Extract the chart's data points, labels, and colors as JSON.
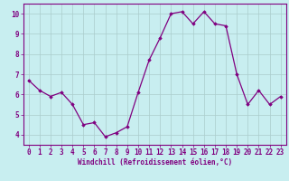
{
  "x": [
    0,
    1,
    2,
    3,
    4,
    5,
    6,
    7,
    8,
    9,
    10,
    11,
    12,
    13,
    14,
    15,
    16,
    17,
    18,
    19,
    20,
    21,
    22,
    23
  ],
  "y": [
    6.7,
    6.2,
    5.9,
    6.1,
    5.5,
    4.5,
    4.6,
    3.9,
    4.1,
    4.4,
    6.1,
    7.7,
    8.8,
    10.0,
    10.1,
    9.5,
    10.1,
    9.5,
    9.4,
    7.0,
    5.5,
    6.2,
    5.5,
    5.9
  ],
  "line_color": "#800080",
  "marker": "D",
  "marker_size": 1.8,
  "line_width": 0.9,
  "bg_color": "#c8eef0",
  "grid_color": "#aacccc",
  "axis_color": "#800080",
  "xlabel": "Windchill (Refroidissement éolien,°C)",
  "xlabel_fontsize": 5.5,
  "tick_fontsize": 5.5,
  "ylabel_ticks": [
    4,
    5,
    6,
    7,
    8,
    9,
    10
  ],
  "xlim": [
    -0.5,
    23.5
  ],
  "ylim": [
    3.5,
    10.5
  ]
}
